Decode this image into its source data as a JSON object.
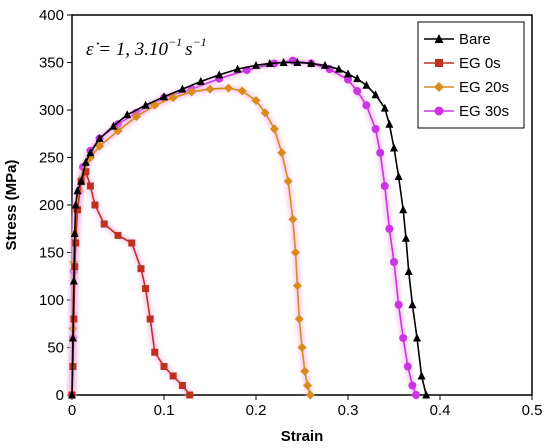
{
  "chart_data": {
    "type": "line",
    "xlabel": "Strain",
    "ylabel": "Stress (MPa)",
    "xlim": [
      0,
      0.5
    ],
    "ylim": [
      0,
      400
    ],
    "x_ticks": [
      "0",
      "0.1",
      "0.2",
      "0.3",
      "0.4",
      "0.5"
    ],
    "y_ticks": [
      "0",
      "50",
      "100",
      "150",
      "200",
      "250",
      "300",
      "350",
      "400"
    ],
    "grid": false,
    "legend_position": "top-right",
    "annotation": {
      "text": "ε̇ = 1, 3.10",
      "superscript": "−1",
      "unit": "s",
      "unit_superscript": "−1"
    },
    "series": [
      {
        "name": "Bare",
        "color": "#000000",
        "marker": "triangle",
        "x": [
          0,
          0.001,
          0.002,
          0.003,
          0.004,
          0.006,
          0.01,
          0.015,
          0.02,
          0.03,
          0.045,
          0.06,
          0.08,
          0.1,
          0.12,
          0.14,
          0.16,
          0.18,
          0.2,
          0.215,
          0.23,
          0.245,
          0.26,
          0.275,
          0.29,
          0.3,
          0.31,
          0.32,
          0.33,
          0.34,
          0.345,
          0.35,
          0.355,
          0.36,
          0.363,
          0.366,
          0.37,
          0.375,
          0.38,
          0.385
        ],
        "y": [
          0,
          60,
          120,
          170,
          200,
          215,
          225,
          245,
          255,
          270,
          283,
          295,
          305,
          314,
          322,
          330,
          337,
          343,
          347,
          349,
          350,
          350,
          349,
          347,
          343,
          338,
          333,
          326,
          316,
          302,
          285,
          260,
          230,
          195,
          165,
          130,
          95,
          60,
          20,
          0
        ]
      },
      {
        "name": "EG 0s",
        "color": "#c0301f",
        "marker": "square",
        "x": [
          0,
          0.001,
          0.002,
          0.003,
          0.004,
          0.006,
          0.01,
          0.015,
          0.02,
          0.025,
          0.035,
          0.05,
          0.065,
          0.075,
          0.08,
          0.085,
          0.09,
          0.1,
          0.11,
          0.12,
          0.128
        ],
        "y": [
          0,
          30,
          80,
          135,
          160,
          195,
          225,
          235,
          220,
          200,
          180,
          168,
          160,
          133,
          112,
          80,
          45,
          30,
          20,
          10,
          0
        ]
      },
      {
        "name": "EG 20s",
        "color": "#d98c1a",
        "marker": "diamond",
        "x": [
          0,
          0.001,
          0.002,
          0.003,
          0.005,
          0.008,
          0.012,
          0.02,
          0.03,
          0.05,
          0.07,
          0.09,
          0.11,
          0.13,
          0.15,
          0.17,
          0.185,
          0.2,
          0.21,
          0.22,
          0.228,
          0.235,
          0.24,
          0.243,
          0.245,
          0.247,
          0.25,
          0.253,
          0.256,
          0.259
        ],
        "y": [
          0,
          70,
          140,
          170,
          195,
          215,
          230,
          250,
          262,
          278,
          293,
          305,
          313,
          319,
          322,
          323,
          320,
          310,
          297,
          280,
          255,
          225,
          185,
          150,
          115,
          80,
          50,
          25,
          10,
          0
        ]
      },
      {
        "name": "EG 30s",
        "color": "#cc33e6",
        "marker": "circle",
        "x": [
          0,
          0.001,
          0.002,
          0.003,
          0.005,
          0.008,
          0.012,
          0.02,
          0.03,
          0.05,
          0.07,
          0.1,
          0.13,
          0.16,
          0.19,
          0.22,
          0.24,
          0.26,
          0.28,
          0.3,
          0.31,
          0.32,
          0.33,
          0.335,
          0.34,
          0.345,
          0.35,
          0.355,
          0.36,
          0.365,
          0.37,
          0.374
        ],
        "y": [
          0,
          60,
          130,
          160,
          195,
          215,
          240,
          257,
          270,
          285,
          297,
          313,
          322,
          333,
          342,
          349,
          352,
          349,
          343,
          332,
          320,
          305,
          280,
          255,
          220,
          175,
          140,
          95,
          60,
          30,
          10,
          0
        ]
      }
    ]
  }
}
